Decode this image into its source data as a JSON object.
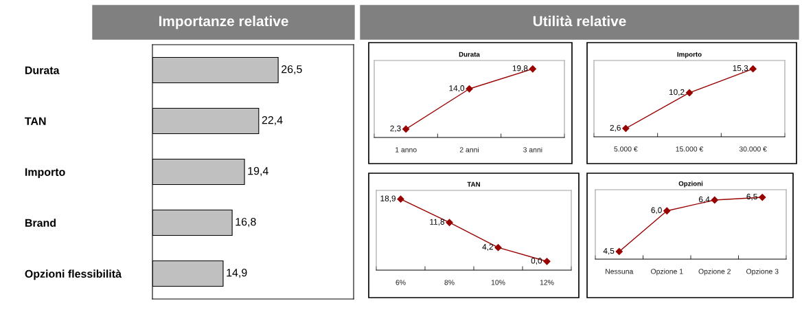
{
  "chart_data": [
    {
      "type": "bar",
      "orientation": "horizontal",
      "title": "Importanze relative",
      "categories": [
        "Durata",
        "TAN",
        "Importo",
        "Brand",
        "Opzioni flessibilità"
      ],
      "values": [
        26.5,
        22.4,
        19.4,
        16.8,
        14.9
      ],
      "value_labels": [
        "26,5",
        "22,4",
        "19,4",
        "16,8",
        "14,9"
      ],
      "color": "#c0c0c0",
      "tick_labels": "y",
      "grid": false
    },
    {
      "type": "other",
      "title": "Utilità relative"
    },
    {
      "type": "line",
      "title": "Durata",
      "categories": [
        "1 anno",
        "2 anni",
        "3 anni"
      ],
      "values": [
        2.3,
        14.0,
        19.8
      ],
      "value_labels": [
        "2,3",
        "14,0",
        "19,8"
      ],
      "color": "#990000",
      "marker": "diamond",
      "line_style": "solid",
      "tick_labels": "x",
      "grid": false
    },
    {
      "type": "line",
      "title": "Importo",
      "categories": [
        "5.000 €",
        "15.000 €",
        "30.000 €"
      ],
      "values": [
        2.6,
        10.2,
        15.3
      ],
      "value_labels": [
        "2,6",
        "10,2",
        "15,3"
      ],
      "color": "#990000",
      "marker": "diamond",
      "line_style": "solid",
      "tick_labels": "x",
      "grid": false
    },
    {
      "type": "line",
      "title": "TAN",
      "categories": [
        "6%",
        "8%",
        "10%",
        "12%"
      ],
      "values": [
        18.9,
        11.8,
        4.2,
        0.0
      ],
      "value_labels": [
        "18,9",
        "11,8",
        "4,2",
        "0,0"
      ],
      "color": "#990000",
      "marker": "diamond",
      "line_style": "solid",
      "tick_labels": "x",
      "grid": false
    },
    {
      "type": "line",
      "title": "Opzioni",
      "categories": [
        "Nessuna",
        "Opzione 1",
        "Opzione 2",
        "Opzione 3"
      ],
      "values": [
        4.5,
        6.0,
        6.4,
        6.5
      ],
      "value_labels": [
        "4,5",
        "6,0",
        "6,4",
        "6,5"
      ],
      "color": "#990000",
      "marker": "diamond",
      "line_style": "solid",
      "tick_labels": "x",
      "grid": false
    }
  ]
}
